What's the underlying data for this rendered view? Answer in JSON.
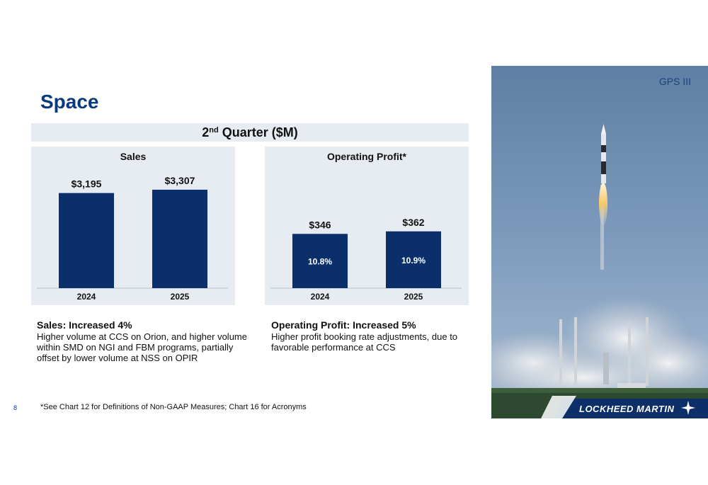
{
  "page": {
    "title": "Space",
    "quarter_label": "2",
    "quarter_suffix": "nd",
    "quarter_rest": " Quarter ($M)",
    "page_number": "8",
    "footnote": "*See Chart 12 for Definitions of Non-GAAP Measures; Chart 16 for Acronyms"
  },
  "colors": {
    "bar": "#0a2f6b",
    "panel": "#e6ecf2",
    "title": "#0a3a7e"
  },
  "chart_data": [
    {
      "type": "bar",
      "title": "Sales",
      "categories": [
        "2024",
        "2025"
      ],
      "values": [
        3195,
        3307
      ],
      "value_labels": [
        "$3,195",
        "$3,307"
      ],
      "ylim": [
        0,
        3900
      ],
      "grid": false
    },
    {
      "type": "bar",
      "title": "Operating Profit*",
      "categories": [
        "2024",
        "2025"
      ],
      "values": [
        346,
        362
      ],
      "value_labels": [
        "$346",
        "$362"
      ],
      "inner_labels": [
        "10.8%",
        "10.9%"
      ],
      "ylim": [
        0,
        740
      ],
      "grid": false
    }
  ],
  "commentary": {
    "sales": {
      "heading": "Sales: Increased 4%",
      "body": "Higher volume at CCS on Orion, and higher volume within SMD on NGI and FBM programs, partially offset by lower volume at NSS on OPIR"
    },
    "profit": {
      "heading": "Operating Profit: Increased 5%",
      "body": "Higher profit booking rate adjustments, due to favorable performance at CCS"
    }
  },
  "photo": {
    "caption": "GPS III",
    "logo": "LOCKHEED MARTIN",
    "icon": "star-logo-icon"
  }
}
